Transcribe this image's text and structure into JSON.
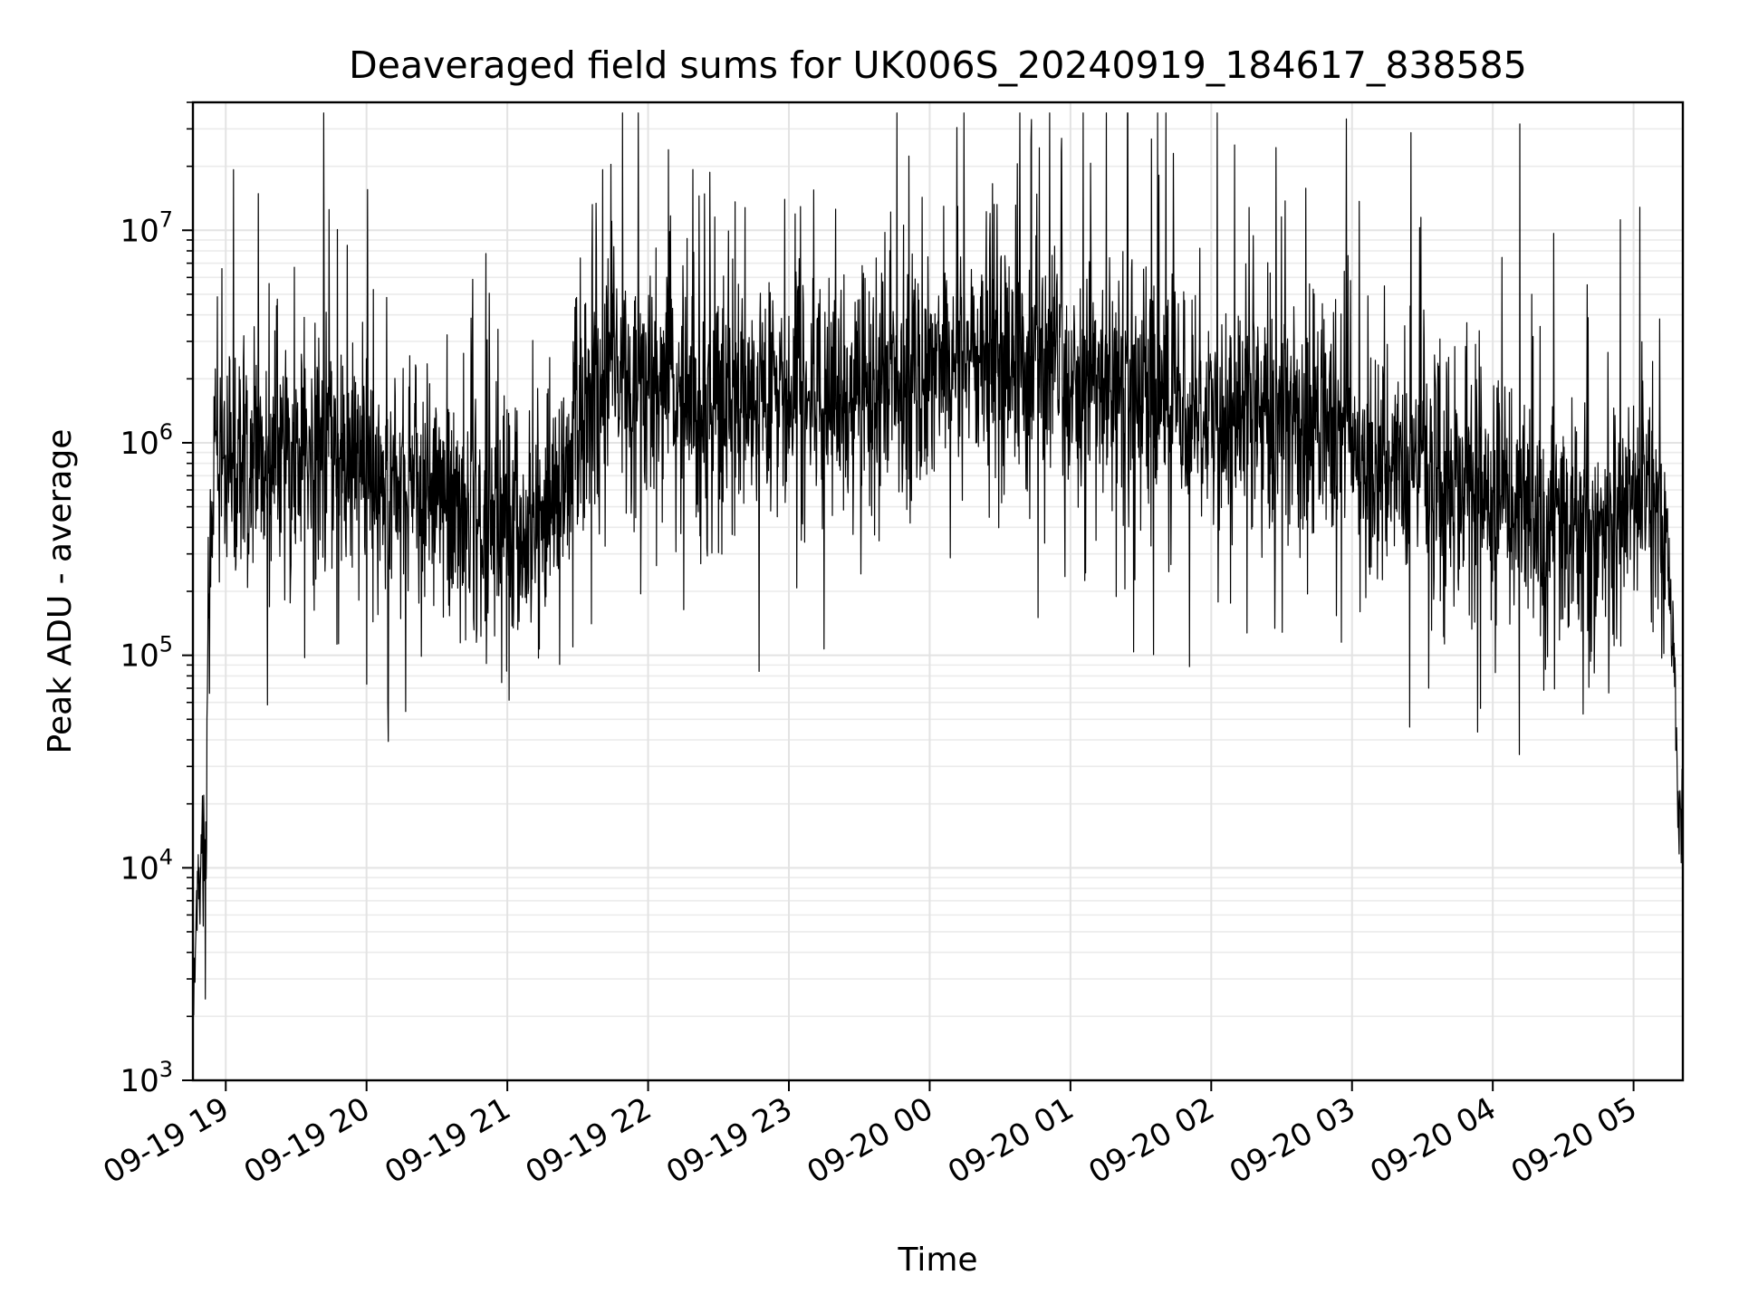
{
  "chart_data": {
    "type": "line",
    "title": "Deaveraged field sums for UK006S_20240919_184617_838585",
    "xlabel": "Time",
    "ylabel": "Peak ADU - average",
    "y_scale": "log",
    "ylim": [
      1000,
      40000000
    ],
    "xlim": [
      "2024-09-19 18:46",
      "2024-09-20 05:21"
    ],
    "grid": true,
    "line_color": "#000000",
    "x_ticks": [
      {
        "label": "09-19 19",
        "value": "2024-09-19 19:00"
      },
      {
        "label": "09-19 20",
        "value": "2024-09-19 20:00"
      },
      {
        "label": "09-19 21",
        "value": "2024-09-19 21:00"
      },
      {
        "label": "09-19 22",
        "value": "2024-09-19 22:00"
      },
      {
        "label": "09-19 23",
        "value": "2024-09-19 23:00"
      },
      {
        "label": "09-20 00",
        "value": "2024-09-20 00:00"
      },
      {
        "label": "09-20 01",
        "value": "2024-09-20 01:00"
      },
      {
        "label": "09-20 02",
        "value": "2024-09-20 02:00"
      },
      {
        "label": "09-20 03",
        "value": "2024-09-20 03:00"
      },
      {
        "label": "09-20 04",
        "value": "2024-09-20 04:00"
      },
      {
        "label": "09-20 05",
        "value": "2024-09-20 05:00"
      }
    ],
    "y_ticks": [
      {
        "base": "10",
        "exp": "3",
        "value": 1000
      },
      {
        "base": "10",
        "exp": "4",
        "value": 10000
      },
      {
        "base": "10",
        "exp": "5",
        "value": 100000
      },
      {
        "base": "10",
        "exp": "6",
        "value": 1000000
      },
      {
        "base": "10",
        "exp": "7",
        "value": 10000000
      }
    ],
    "series": [
      {
        "x": [
          "2024-09-19 18:46",
          "2024-09-19 18:47",
          "2024-09-19 18:48",
          "2024-09-19 18:49",
          "2024-09-19 18:50",
          "2024-09-19 18:51",
          "2024-09-19 18:52",
          "2024-09-19 18:53",
          "2024-09-19 18:54",
          "2024-09-19 18:55",
          "2024-09-19 18:56",
          "2024-09-19 18:57",
          "2024-09-19 18:58",
          "2024-09-19 19:00",
          "2024-09-19 19:05",
          "2024-09-19 19:10",
          "2024-09-19 19:15",
          "2024-09-19 19:20",
          "2024-09-19 19:30",
          "2024-09-19 19:40",
          "2024-09-19 19:50",
          "2024-09-19 20:00",
          "2024-09-19 20:10",
          "2024-09-19 20:20",
          "2024-09-19 20:30",
          "2024-09-19 20:40",
          "2024-09-19 20:50",
          "2024-09-19 21:00",
          "2024-09-19 21:10",
          "2024-09-19 21:20",
          "2024-09-19 21:28",
          "2024-09-19 21:32",
          "2024-09-19 21:40",
          "2024-09-19 21:50",
          "2024-09-19 22:00",
          "2024-09-19 22:15",
          "2024-09-19 22:30",
          "2024-09-19 22:45",
          "2024-09-19 23:00",
          "2024-09-19 23:15",
          "2024-09-19 23:30",
          "2024-09-19 23:45",
          "2024-09-20 00:00",
          "2024-09-20 00:15",
          "2024-09-20 00:30",
          "2024-09-20 00:45",
          "2024-09-20 01:00",
          "2024-09-20 01:15",
          "2024-09-20 01:30",
          "2024-09-20 01:45",
          "2024-09-20 02:00",
          "2024-09-20 02:15",
          "2024-09-20 02:30",
          "2024-09-20 02:45",
          "2024-09-20 03:00",
          "2024-09-20 03:15",
          "2024-09-20 03:30",
          "2024-09-20 03:45",
          "2024-09-20 04:00",
          "2024-09-20 04:15",
          "2024-09-20 04:30",
          "2024-09-20 04:45",
          "2024-09-20 05:00",
          "2024-09-20 05:05",
          "2024-09-20 05:10",
          "2024-09-20 05:14",
          "2024-09-20 05:17",
          "2024-09-20 05:19",
          "2024-09-20 05:21"
        ],
        "y": [
          1800,
          3500,
          12000,
          8000,
          15000,
          7000,
          60000,
          150000,
          400000,
          800000,
          1200000,
          900000,
          700000,
          900000,
          1000000,
          900000,
          850000,
          800000,
          850000,
          900000,
          800000,
          700000,
          600000,
          550000,
          500000,
          450000,
          400000,
          450000,
          400000,
          380000,
          1000000,
          1500000,
          1700000,
          1800000,
          1800000,
          1600000,
          1500000,
          1400000,
          1500000,
          1600000,
          1800000,
          2000000,
          2400000,
          2600000,
          2400000,
          2100000,
          1900000,
          1900000,
          1900000,
          1700000,
          1500000,
          1400000,
          1300000,
          1200000,
          1000000,
          850000,
          750000,
          650000,
          550000,
          450000,
          400000,
          350000,
          500000,
          600000,
          500000,
          400000,
          100000,
          20000,
          15000
        ]
      }
    ]
  }
}
